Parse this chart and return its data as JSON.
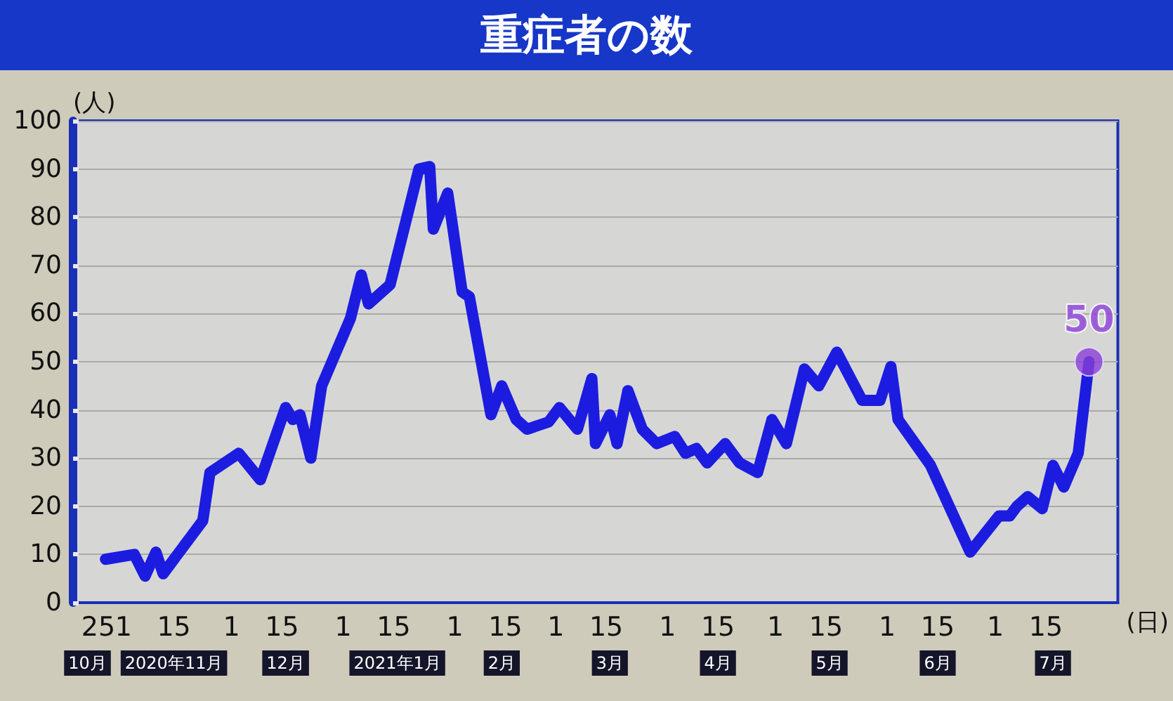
{
  "chart_data": {
    "type": "line",
    "title": "重症者の数",
    "ylabel": "(人)",
    "xlabel": "(日)",
    "xlim": [
      "2020-10-18",
      "2021-08-04"
    ],
    "ylim": [
      0,
      100
    ],
    "yticks": [
      0,
      10,
      20,
      30,
      40,
      50,
      60,
      70,
      80,
      90,
      100
    ],
    "xticks": [
      {
        "value": "2020-10-25",
        "label": "25"
      },
      {
        "value": "2020-11-01",
        "label": "1"
      },
      {
        "value": "2020-11-15",
        "label": "15"
      },
      {
        "value": "2020-12-01",
        "label": "1"
      },
      {
        "value": "2020-12-15",
        "label": "15"
      },
      {
        "value": "2021-01-01",
        "label": "1"
      },
      {
        "value": "2021-01-15",
        "label": "15"
      },
      {
        "value": "2021-02-01",
        "label": "1"
      },
      {
        "value": "2021-02-15",
        "label": "15"
      },
      {
        "value": "2021-03-01",
        "label": "1"
      },
      {
        "value": "2021-03-15",
        "label": "15"
      },
      {
        "value": "2021-04-01",
        "label": "1"
      },
      {
        "value": "2021-04-15",
        "label": "15"
      },
      {
        "value": "2021-05-01",
        "label": "1"
      },
      {
        "value": "2021-05-15",
        "label": "15"
      },
      {
        "value": "2021-06-01",
        "label": "1"
      },
      {
        "value": "2021-06-15",
        "label": "15"
      },
      {
        "value": "2021-07-01",
        "label": "1"
      },
      {
        "value": "2021-07-15",
        "label": "15"
      }
    ],
    "x2lim": [
      "2020-10-18",
      "2021-08-04"
    ],
    "x2ticks": [
      {
        "value": "2020-10-22",
        "label": "10月"
      },
      {
        "value": "2020-11-15",
        "label": "2020年11月"
      },
      {
        "value": "2020-12-16",
        "label": "12月"
      },
      {
        "value": "2021-01-16",
        "label": "2021年1月"
      },
      {
        "value": "2021-02-14",
        "label": "2月"
      },
      {
        "value": "2021-03-16",
        "label": "3月"
      },
      {
        "value": "2021-04-15",
        "label": "4月"
      },
      {
        "value": "2021-05-16",
        "label": "5月"
      },
      {
        "value": "2021-06-15",
        "label": "6月"
      },
      {
        "value": "2021-07-17",
        "label": "7月"
      }
    ],
    "grid": "y",
    "marker": "none",
    "line_style": "solid",
    "series": [
      {
        "color": "#1c1ce0",
        "x": [
          "2020-10-27",
          "2020-11-04",
          "2020-11-07",
          "2020-11-10",
          "2020-11-12",
          "2020-11-23",
          "2020-11-25",
          "2020-12-03",
          "2020-12-09",
          "2020-12-16",
          "2020-12-18",
          "2020-12-20",
          "2020-12-23",
          "2020-12-26",
          "2021-01-03",
          "2021-01-06",
          "2021-01-08",
          "2021-01-14",
          "2021-01-22",
          "2021-01-25",
          "2021-01-26",
          "2021-01-30",
          "2021-02-03",
          "2021-02-05",
          "2021-02-11",
          "2021-02-14",
          "2021-02-18",
          "2021-02-21",
          "2021-02-27",
          "2021-03-02",
          "2021-03-07",
          "2021-03-11",
          "2021-03-12",
          "2021-03-16",
          "2021-03-18",
          "2021-03-21",
          "2021-03-25",
          "2021-03-29",
          "2021-04-03",
          "2021-04-06",
          "2021-04-09",
          "2021-04-12",
          "2021-04-17",
          "2021-04-21",
          "2021-04-26",
          "2021-04-30",
          "2021-05-04",
          "2021-05-09",
          "2021-05-13",
          "2021-05-18",
          "2021-05-25",
          "2021-05-30",
          "2021-06-02",
          "2021-06-04",
          "2021-06-13",
          "2021-06-24",
          "2021-07-02",
          "2021-07-05",
          "2021-07-07",
          "2021-07-10",
          "2021-07-14",
          "2021-07-17",
          "2021-07-20",
          "2021-07-24",
          "2021-07-27"
        ],
        "values": [
          9,
          10,
          5.5,
          10.5,
          6,
          17,
          27,
          31,
          25.5,
          40.5,
          38,
          39,
          30,
          45,
          59,
          68,
          62,
          66,
          90,
          90.5,
          77.5,
          85,
          64.5,
          63.5,
          39,
          45,
          38,
          36,
          37.5,
          40.5,
          36,
          46.5,
          33,
          39,
          33,
          44,
          36,
          33,
          34.5,
          31,
          32,
          29,
          33,
          29,
          27,
          38,
          33,
          48.5,
          45,
          52,
          42,
          42,
          49,
          38,
          28.5,
          10.5,
          18,
          18,
          20,
          22,
          19.5,
          28.5,
          24,
          31,
          50
        ]
      },
      {
        "type": "scatter",
        "color": "#8a3fd6",
        "marker": "circle",
        "x": [
          "2021-07-27"
        ],
        "values": [
          50
        ],
        "value_labels": [
          "50"
        ]
      }
    ]
  }
}
